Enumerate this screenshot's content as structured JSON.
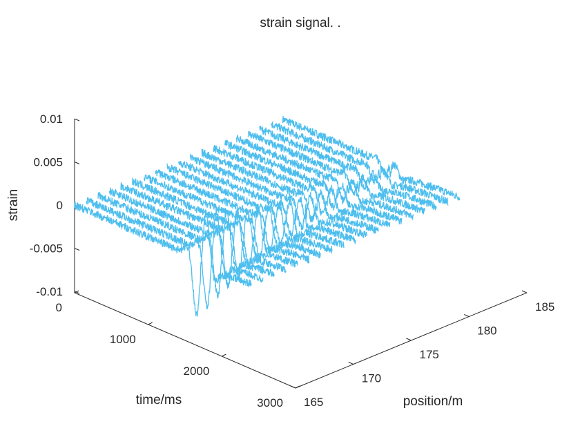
{
  "chart_data": {
    "type": "line",
    "projection": "3d-waterfall",
    "title": "strain signal. .",
    "xlabel": "time/ms",
    "ylabel": "position/m",
    "zlabel": "strain",
    "xlim": [
      0,
      3000
    ],
    "ylim": [
      165,
      185
    ],
    "zlim": [
      -0.01,
      0.01
    ],
    "xticks": [
      {
        "value": 0,
        "label": "0"
      },
      {
        "value": 1000,
        "label": "1000"
      },
      {
        "value": 2000,
        "label": "2000"
      },
      {
        "value": 3000,
        "label": "3000"
      }
    ],
    "yticks": [
      {
        "value": 165,
        "label": "165"
      },
      {
        "value": 170,
        "label": "170"
      },
      {
        "value": 175,
        "label": "175"
      },
      {
        "value": 180,
        "label": "180"
      },
      {
        "value": 185,
        "label": "185"
      }
    ],
    "zticks": [
      {
        "value": -0.01,
        "label": "-0.01"
      },
      {
        "value": -0.005,
        "label": "-0.005"
      },
      {
        "value": 0,
        "label": "0"
      },
      {
        "value": 0.005,
        "label": "0.005"
      },
      {
        "value": 0.01,
        "label": "0.01"
      }
    ],
    "grid": false,
    "line_color": "#4DBEEE",
    "traces": [
      {
        "position": 165.0,
        "baseline": 0.0,
        "amplitude": 0.0085,
        "event_time": 1720
      },
      {
        "position": 166.0,
        "baseline": 0.0,
        "amplitude": 0.008,
        "event_time": 1705
      },
      {
        "position": 167.0,
        "baseline": 0.0,
        "amplitude": 0.0072,
        "event_time": 1690
      },
      {
        "position": 168.0,
        "baseline": 0.0,
        "amplitude": 0.0065,
        "event_time": 1675
      },
      {
        "position": 169.0,
        "baseline": 0.0,
        "amplitude": 0.0058,
        "event_time": 1660
      },
      {
        "position": 170.0,
        "baseline": 0.0,
        "amplitude": 0.0052,
        "event_time": 1645
      },
      {
        "position": 171.0,
        "baseline": 0.0,
        "amplitude": 0.0047,
        "event_time": 1630
      },
      {
        "position": 172.0,
        "baseline": 0.0,
        "amplitude": 0.0043,
        "event_time": 1615
      },
      {
        "position": 173.0,
        "baseline": 0.0,
        "amplitude": 0.004,
        "event_time": 1600
      },
      {
        "position": 174.0,
        "baseline": 0.0,
        "amplitude": 0.0036,
        "event_time": 1585
      },
      {
        "position": 175.0,
        "baseline": 0.0,
        "amplitude": 0.0033,
        "event_time": 1570
      },
      {
        "position": 176.0,
        "baseline": 0.0,
        "amplitude": 0.003,
        "event_time": 1555
      },
      {
        "position": 177.0,
        "baseline": 0.0,
        "amplitude": 0.0028,
        "event_time": 1540
      },
      {
        "position": 178.0,
        "baseline": 0.0,
        "amplitude": 0.0026,
        "event_time": 1525
      },
      {
        "position": 179.0,
        "baseline": 0.0,
        "amplitude": 0.0024,
        "event_time": 1510
      },
      {
        "position": 180.0,
        "baseline": 0.0,
        "amplitude": 0.0022,
        "event_time": 1495
      },
      {
        "position": 181.0,
        "baseline": 0.0,
        "amplitude": 0.002,
        "event_time": 1480
      },
      {
        "position": 182.0,
        "baseline": 0.0,
        "amplitude": 0.0019,
        "event_time": 1465
      },
      {
        "position": 183.0,
        "baseline": 0.0,
        "amplitude": 0.0018,
        "event_time": 1450
      }
    ]
  }
}
